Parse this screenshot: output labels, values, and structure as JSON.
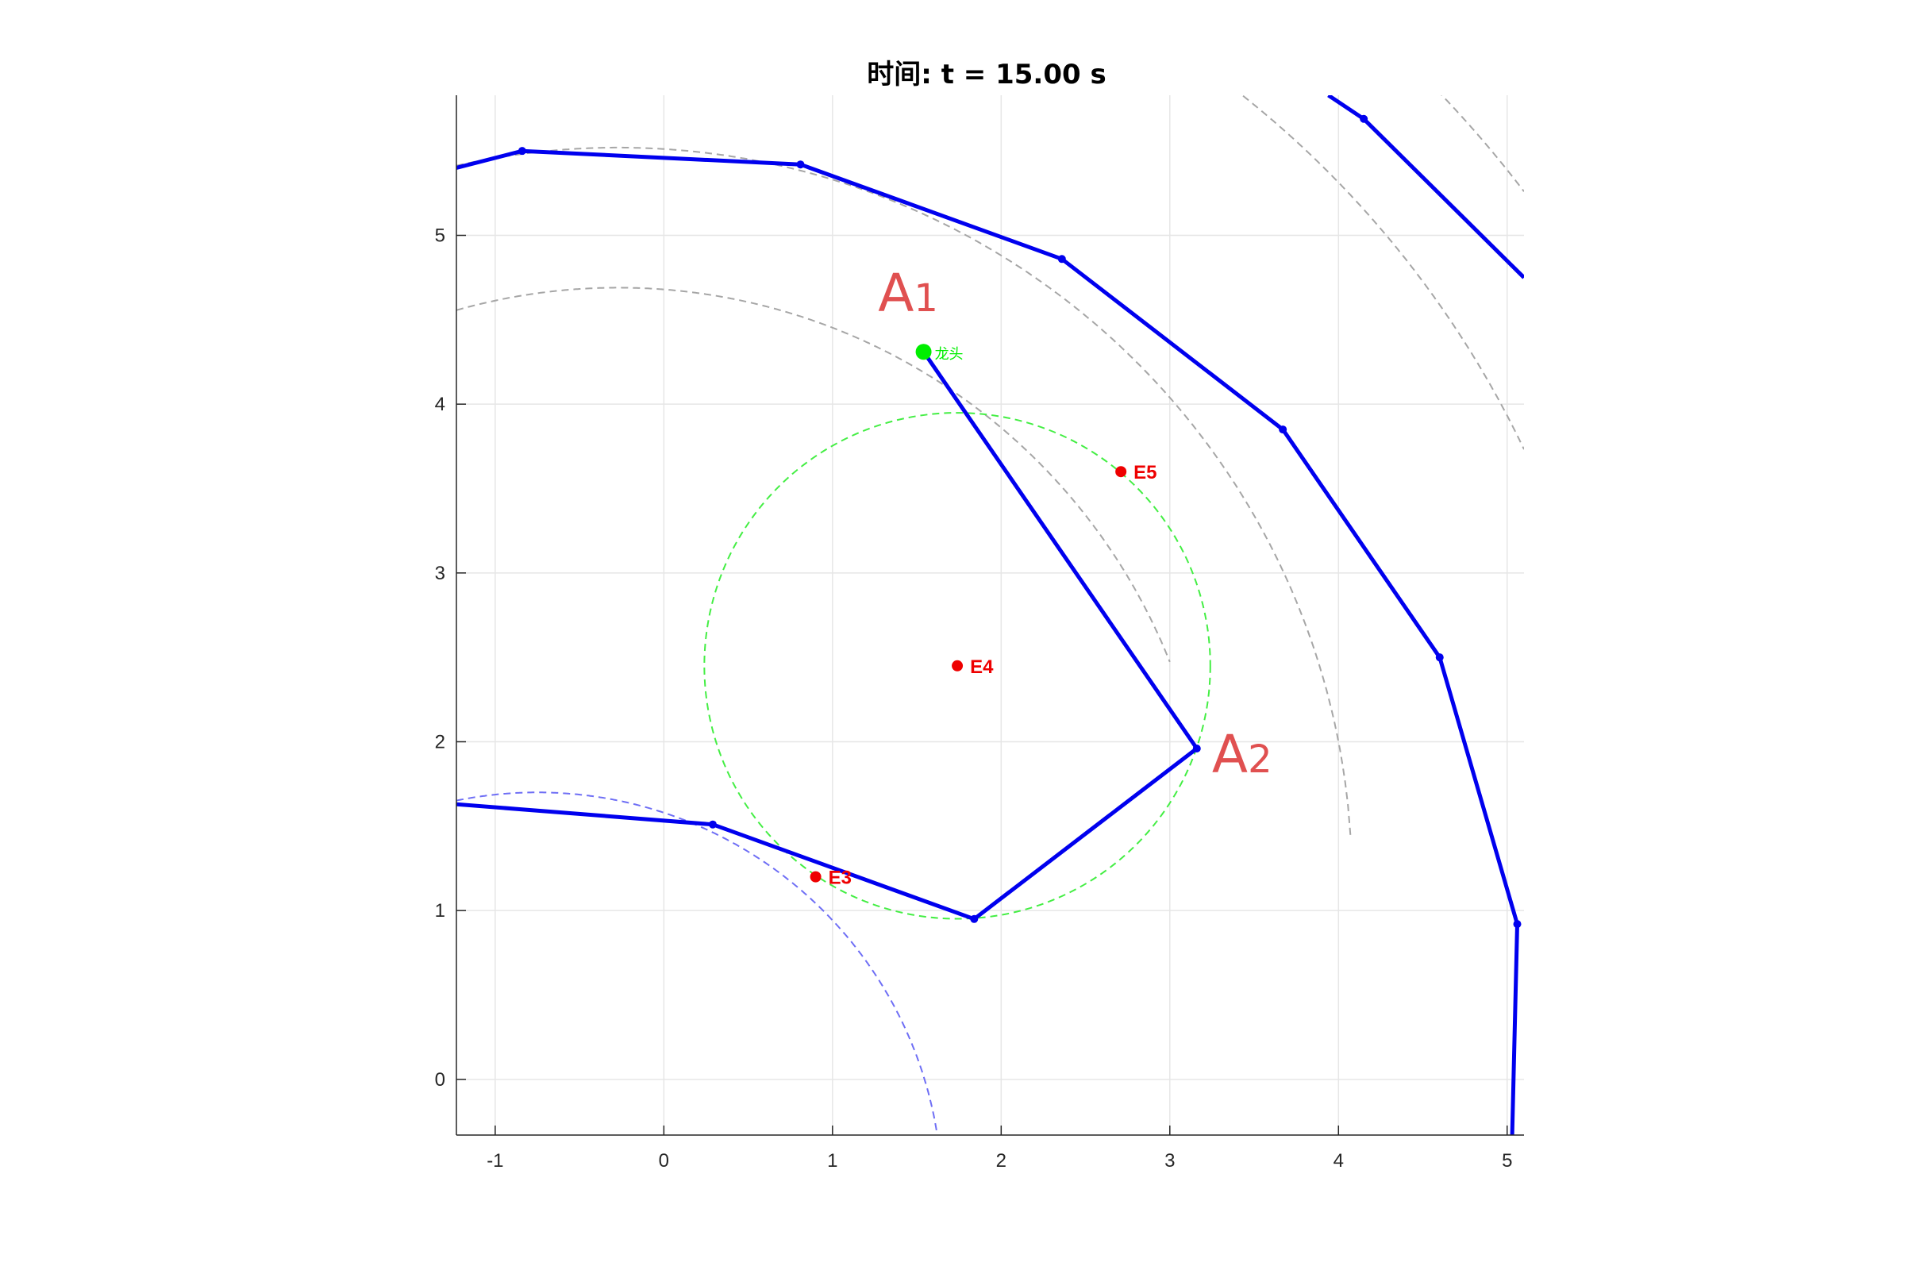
{
  "chart_data": {
    "type": "line",
    "title": "时间: t = 15.00 s",
    "xlabel": "",
    "ylabel": "",
    "xlim": [
      -1.23,
      5.1
    ],
    "ylim": [
      -0.33,
      5.83
    ],
    "xticks": [
      -1,
      0,
      1,
      2,
      3,
      4,
      5
    ],
    "yticks": [
      0,
      1,
      2,
      3,
      4,
      5
    ],
    "grid": true,
    "aspect": "equal",
    "colors": {
      "chain": "#0000ee",
      "guide_arc": "#a6a6a6",
      "blue_arc": "#6e6ef5",
      "green_circle": "#44ee44",
      "head_point": "#00ee00",
      "event_points": "#ee0000",
      "annotation": "#e05050"
    },
    "series": [
      {
        "role": "outer-chain",
        "x": [
          -1.23,
          -0.84,
          0.81,
          2.36,
          3.67,
          4.6,
          5.06,
          5.03
        ],
        "y": [
          5.4,
          5.5,
          5.42,
          4.86,
          3.85,
          2.5,
          0.92,
          -0.33
        ]
      },
      {
        "role": "corner-chain",
        "x": [
          3.94,
          4.15,
          5.1
        ],
        "y": [
          5.83,
          5.69,
          4.75
        ]
      },
      {
        "role": "head-chain",
        "x": [
          1.54,
          3.16,
          1.84,
          0.29,
          -1.23
        ],
        "y": [
          4.31,
          1.96,
          0.95,
          1.51,
          1.63
        ]
      }
    ],
    "guide_arcs": [
      {
        "center": [
          -0.27,
          1.17
        ],
        "radius": 4.35,
        "x_range": [
          -1.23,
          5.1
        ],
        "style": "gray-dashed"
      },
      {
        "center": [
          -0.27,
          1.17
        ],
        "radius": 3.52,
        "x_range": [
          -1.23,
          3.0
        ],
        "style": "gray-dashed"
      },
      {
        "center": [
          -0.27,
          1.17
        ],
        "radius": 5.95,
        "x_range": [
          2.3,
          5.1
        ],
        "style": "gray-dashed"
      },
      {
        "center": [
          -0.27,
          1.17
        ],
        "radius": 6.75,
        "x_range": [
          3.85,
          5.1
        ],
        "style": "gray-dashed"
      },
      {
        "center": [
          -0.75,
          -0.7
        ],
        "radius": 2.4,
        "x_range": [
          -1.23,
          2.11
        ],
        "style": "blue-dashed"
      }
    ],
    "turn_circle": {
      "center": [
        1.74,
        2.45
      ],
      "radius": 1.5
    },
    "head": {
      "x": 1.54,
      "y": 4.31,
      "label": "龙头"
    },
    "event_points": [
      {
        "label": "E3",
        "x": 0.9,
        "y": 1.2
      },
      {
        "label": "E4",
        "x": 1.74,
        "y": 2.45
      },
      {
        "label": "E5",
        "x": 2.71,
        "y": 3.6
      }
    ],
    "annotations": [
      {
        "label": "A",
        "sub": "1",
        "x": 1.27,
        "y": 4.55
      },
      {
        "label": "A",
        "sub": "2",
        "x": 3.25,
        "y": 1.82
      }
    ]
  }
}
